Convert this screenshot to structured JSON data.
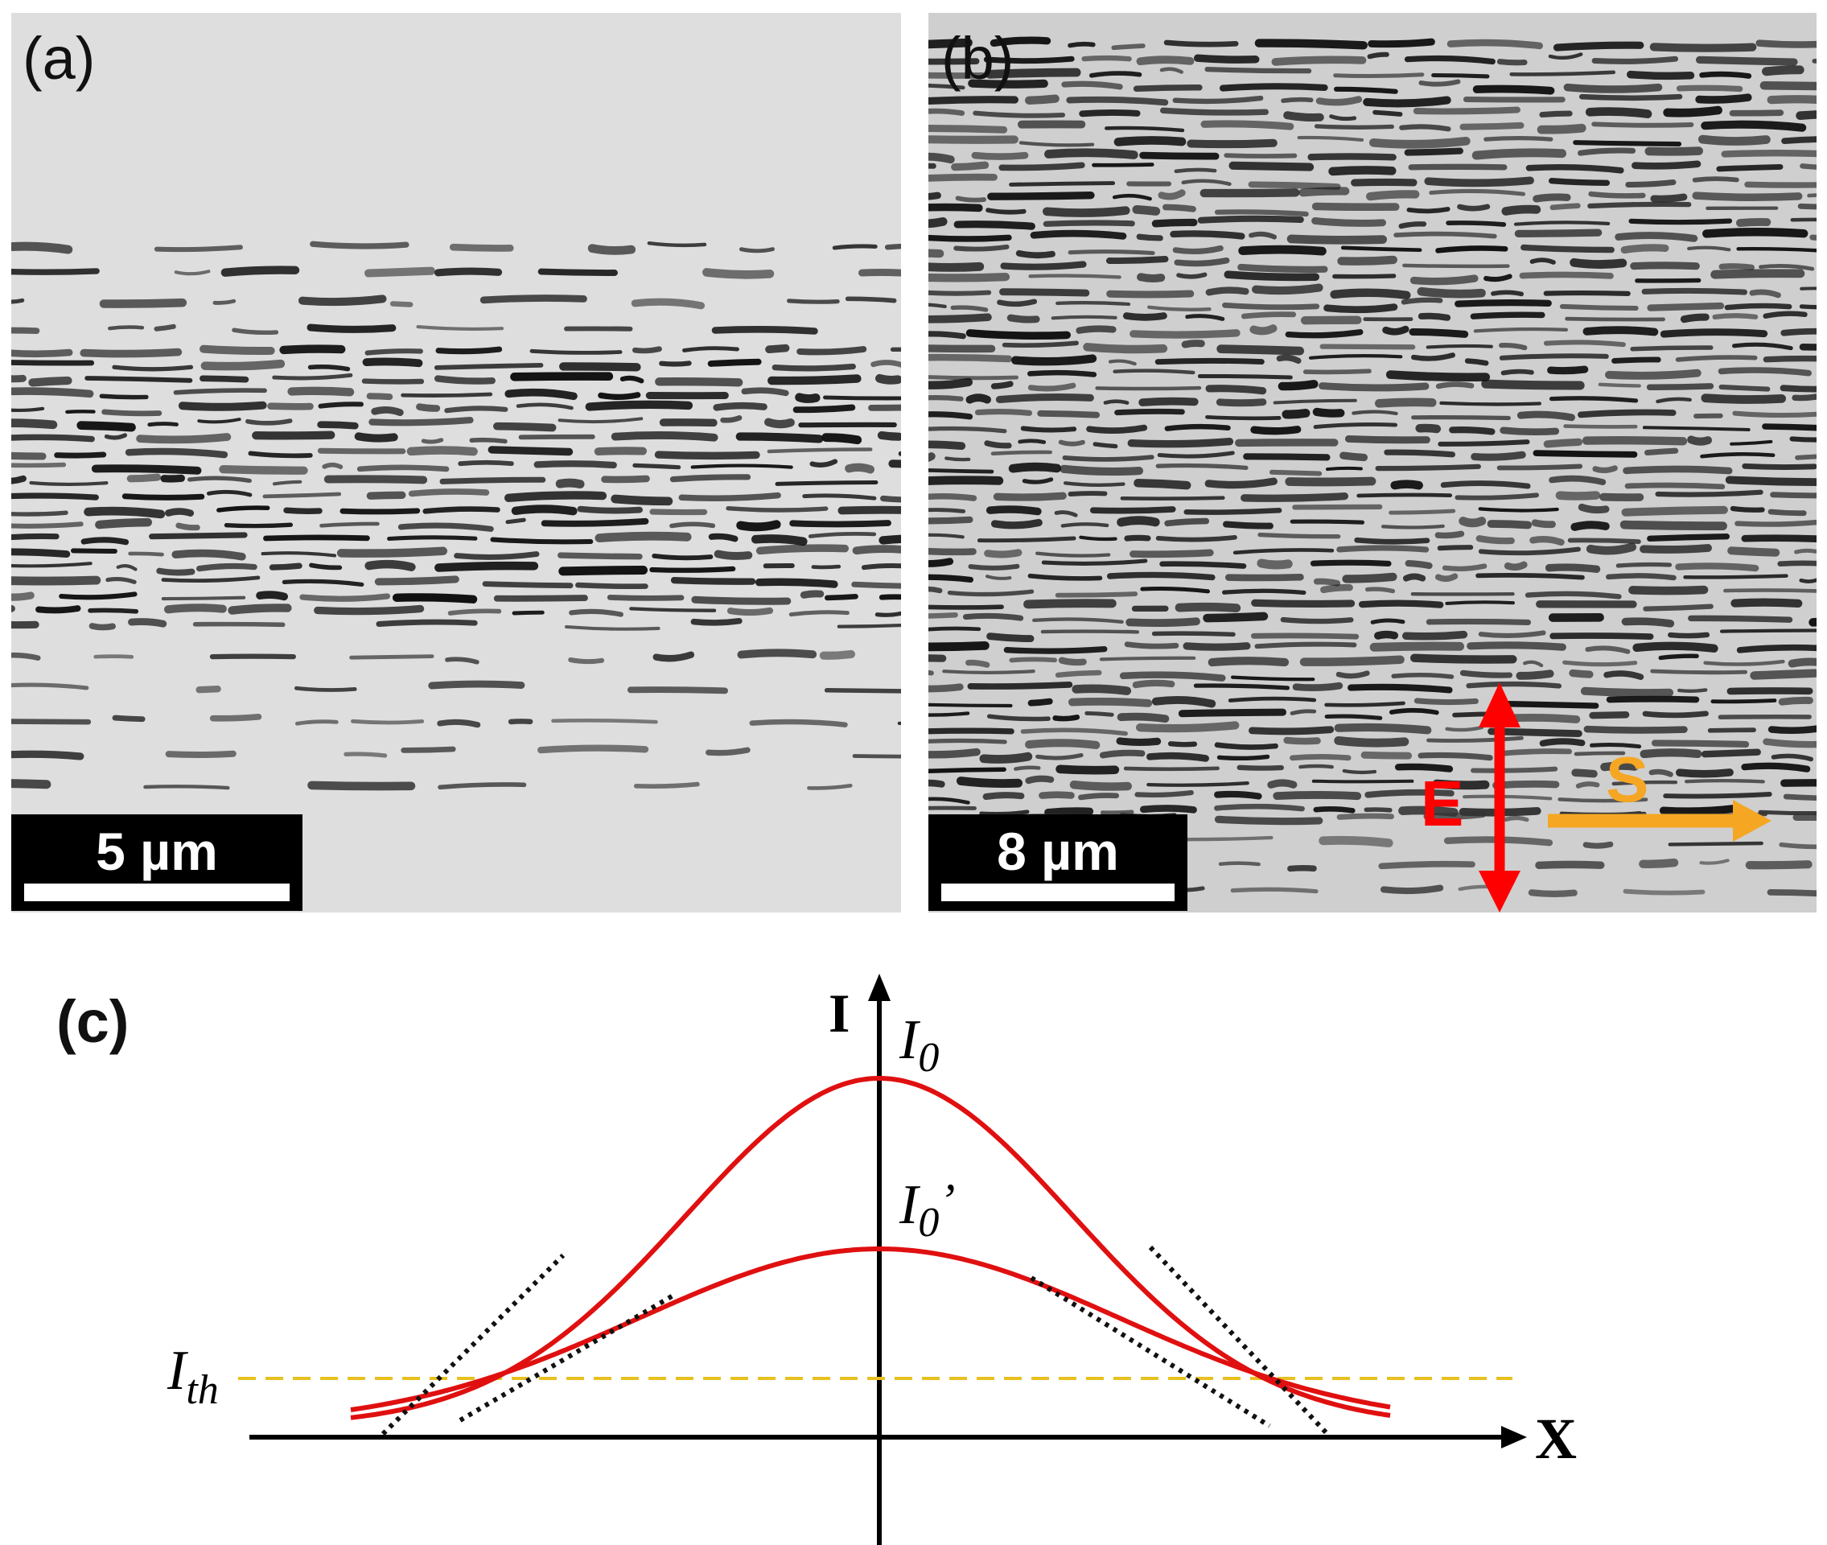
{
  "panels": {
    "a": {
      "label": "(a)",
      "scale": "5 µm"
    },
    "b": {
      "label": "(b)",
      "scale": "8 µm",
      "e_label": "E",
      "s_label": "S",
      "e_color": "#ff0000",
      "s_color": "#f5a623"
    }
  },
  "diagram": {
    "label": "(c)",
    "y_axis": "I",
    "x_axis": "X",
    "peak_high": "I",
    "peak_high_sub": "0",
    "peak_low": "I",
    "peak_low_sub": "0",
    "peak_low_prime": "’",
    "threshold": "I",
    "threshold_sub": "th",
    "curve_color": "#e01010",
    "threshold_color": "#e8c020"
  }
}
